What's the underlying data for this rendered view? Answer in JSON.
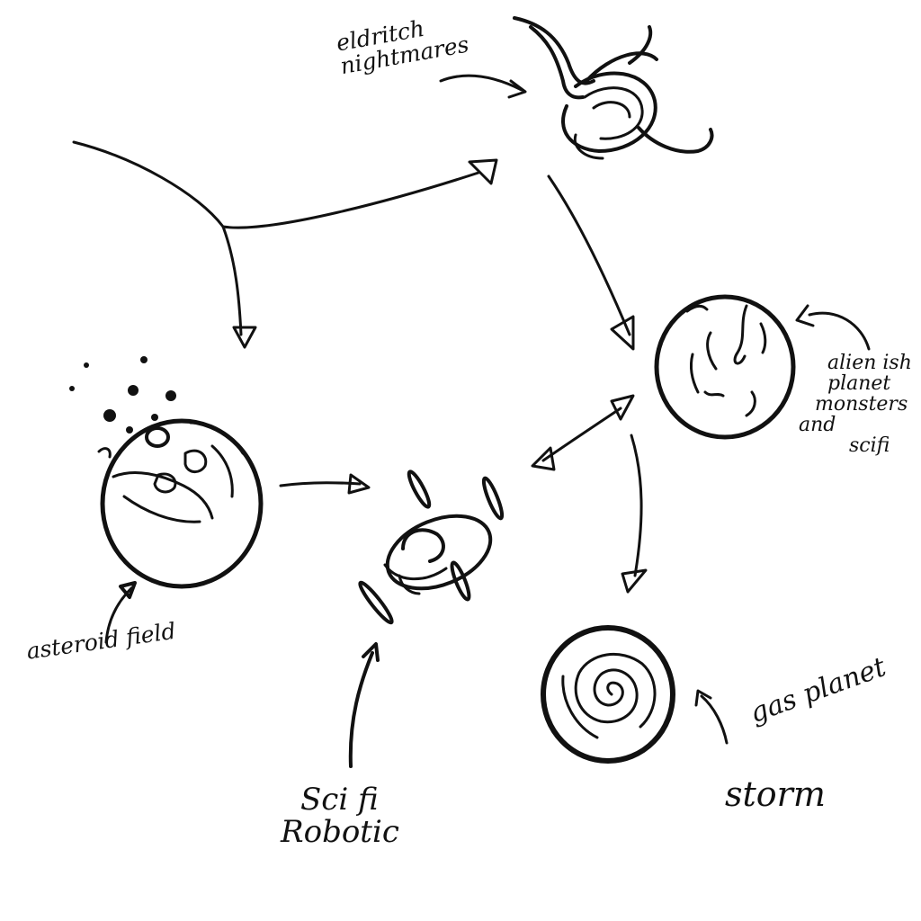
{
  "labels": {
    "eldritch": [
      "eldritch",
      "nightmares"
    ],
    "alien": [
      "alien ish",
      "planet",
      "monsters",
      "and",
      "scifi"
    ],
    "asteroid": "asteroid field",
    "scifi": [
      "Sci fi",
      "Robotic"
    ],
    "gas": "gas planet",
    "storm": "storm"
  },
  "nodes": [
    "eldritch-squid-icon",
    "alien-planet-icon",
    "asteroid-planet-icon",
    "robotic-ufo-icon",
    "gas-planet-storm-icon"
  ],
  "colors": {
    "ink": "#111111",
    "paper": "#ffffff"
  }
}
